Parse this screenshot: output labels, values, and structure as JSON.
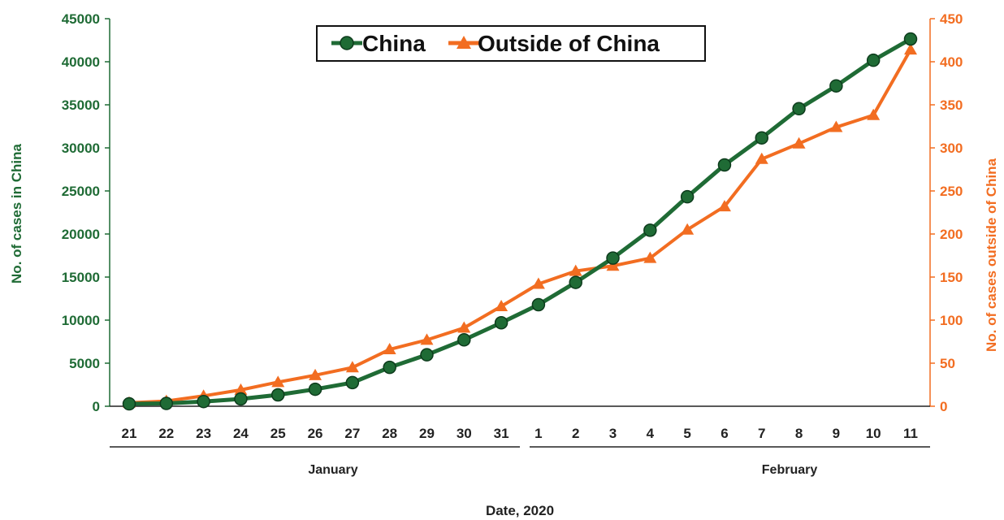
{
  "colors": {
    "china": "#1f6b35",
    "outside": "#f26d21",
    "axis": "#222222"
  },
  "chart_data": {
    "type": "line",
    "xlabel": "Date, 2020",
    "x": [
      "21",
      "22",
      "23",
      "24",
      "25",
      "26",
      "27",
      "28",
      "29",
      "30",
      "31",
      "1",
      "2",
      "3",
      "4",
      "5",
      "6",
      "7",
      "8",
      "9",
      "10",
      "11"
    ],
    "x_groups": [
      {
        "label": "January",
        "from": "21",
        "to": "31"
      },
      {
        "label": "February",
        "from": "1",
        "to": "11"
      }
    ],
    "y_left": {
      "label": "No. of cases in China",
      "lim": [
        0,
        45000
      ],
      "ticks": [
        "0",
        "5000",
        "10000",
        "15000",
        "20000",
        "25000",
        "30000",
        "35000",
        "40000",
        "45000"
      ]
    },
    "y_right": {
      "label": "No. of cases outside of China",
      "lim": [
        0,
        450
      ],
      "ticks": [
        "0",
        "50",
        "100",
        "150",
        "200",
        "250",
        "300",
        "350",
        "400",
        "450"
      ]
    },
    "legend": {
      "placement": "top-center",
      "boxed": true
    },
    "series": [
      {
        "name": "China",
        "axis": "left",
        "marker": "circle",
        "values": [
          278,
          326,
          547,
          846,
          1320,
          1975,
          2744,
          4515,
          5974,
          7711,
          9692,
          11791,
          14380,
          17205,
          20438,
          24324,
          28018,
          31161,
          34546,
          37198,
          40171,
          42638
        ]
      },
      {
        "name": "Outside of China",
        "axis": "right",
        "marker": "triangle",
        "values": [
          4,
          6,
          12,
          19,
          28,
          36,
          45,
          66,
          77,
          91,
          116,
          142,
          157,
          163,
          172,
          205,
          232,
          287,
          305,
          324,
          338,
          414
        ]
      }
    ],
    "grid": false
  }
}
